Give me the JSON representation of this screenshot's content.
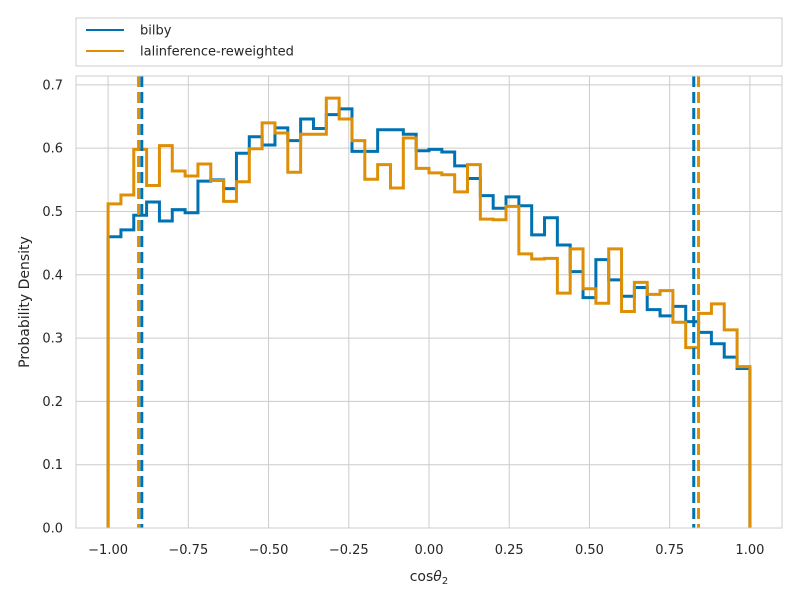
{
  "chart_data": {
    "type": "line",
    "subtype": "step-histogram",
    "xlabel": "cosθ2",
    "xlabel_main": "cos",
    "xlabel_symbol": "θ",
    "xlabel_sub": "2",
    "ylabel": "Probability Density",
    "xlim": [
      -1.1,
      1.1
    ],
    "ylim": [
      0,
      0.714
    ],
    "xticks": [
      -1.0,
      -0.75,
      -0.5,
      -0.25,
      0.0,
      0.25,
      0.5,
      0.75,
      1.0
    ],
    "xtick_labels": [
      "−1.00",
      "−0.75",
      "−0.50",
      "−0.25",
      "0.00",
      "0.25",
      "0.50",
      "0.75",
      "1.00"
    ],
    "yticks": [
      0.0,
      0.1,
      0.2,
      0.3,
      0.4,
      0.5,
      0.6,
      0.7
    ],
    "ytick_labels": [
      "0.0",
      "0.1",
      "0.2",
      "0.3",
      "0.4",
      "0.5",
      "0.6",
      "0.7"
    ],
    "grid": true,
    "legend_position": "top, above plot",
    "bin_edges_start": -1.0,
    "bin_width": 0.04,
    "series": [
      {
        "name": "bilby",
        "color": "#0072b2",
        "values": [
          0.46,
          0.471,
          0.494,
          0.515,
          0.485,
          0.503,
          0.498,
          0.548,
          0.55,
          0.536,
          0.592,
          0.618,
          0.605,
          0.632,
          0.612,
          0.646,
          0.631,
          0.653,
          0.662,
          0.595,
          0.595,
          0.629,
          0.629,
          0.622,
          0.596,
          0.598,
          0.594,
          0.572,
          0.552,
          0.525,
          0.505,
          0.523,
          0.509,
          0.463,
          0.49,
          0.447,
          0.405,
          0.364,
          0.424,
          0.392,
          0.366,
          0.38,
          0.345,
          0.335,
          0.35,
          0.326,
          0.309,
          0.291,
          0.27,
          0.252
        ],
        "dashed_lines": [
          -0.895,
          0.825
        ]
      },
      {
        "name": "lalinference-reweighted",
        "color": "#de8f05",
        "values": [
          0.512,
          0.526,
          0.598,
          0.541,
          0.604,
          0.564,
          0.556,
          0.575,
          0.549,
          0.516,
          0.547,
          0.599,
          0.64,
          0.624,
          0.562,
          0.622,
          0.622,
          0.679,
          0.646,
          0.612,
          0.551,
          0.574,
          0.537,
          0.616,
          0.568,
          0.561,
          0.558,
          0.531,
          0.574,
          0.488,
          0.487,
          0.508,
          0.433,
          0.425,
          0.426,
          0.371,
          0.441,
          0.378,
          0.355,
          0.441,
          0.342,
          0.388,
          0.369,
          0.375,
          0.325,
          0.285,
          0.339,
          0.354,
          0.313,
          0.255
        ],
        "dashed_lines": [
          -0.905,
          0.84
        ]
      }
    ]
  }
}
